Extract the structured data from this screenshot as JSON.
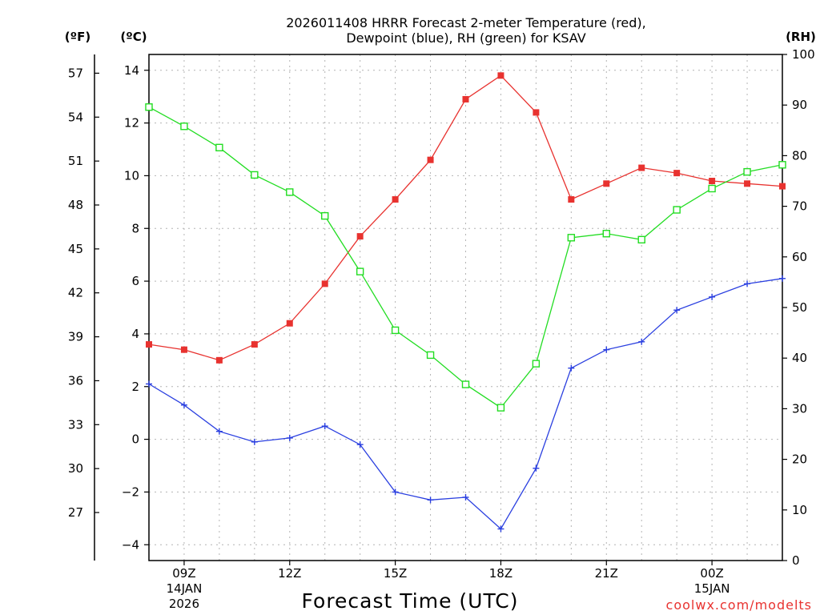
{
  "chart_data": {
    "type": "line",
    "title_line1": "2026011408 HRRR Forecast 2-meter Temperature (red),",
    "title_line2": "Dewpoint (blue), RH (green) for KSAV",
    "xlabel": "Forecast Time (UTC)",
    "credit": "coolwx.com/modelts",
    "units": {
      "fahrenheit": "(ºF)",
      "celsius": "(ºC)",
      "rh": "(RH)"
    },
    "x_hours": [
      8,
      9,
      10,
      11,
      12,
      13,
      14,
      15,
      16,
      17,
      18,
      19,
      20,
      21,
      22,
      23,
      24,
      25,
      26
    ],
    "xlim": [
      8,
      26
    ],
    "celsius_ylim": [
      -4.6,
      14.6
    ],
    "rh_ylim": [
      0,
      100
    ],
    "celsius_ticks": [
      14,
      12,
      10,
      8,
      6,
      4,
      2,
      0,
      -2,
      -4
    ],
    "celsius_tick_labels": [
      "14",
      "12",
      "10",
      "8",
      "6",
      "4",
      "2",
      "0",
      "−2",
      "−4"
    ],
    "fahrenheit_ticks": [
      57,
      54,
      51,
      48,
      45,
      42,
      39,
      36,
      33,
      30,
      27
    ],
    "fahrenheit_tick_labels": [
      "57",
      "54",
      "51",
      "48",
      "45",
      "42",
      "39",
      "36",
      "33",
      "30",
      "27"
    ],
    "rh_ticks": [
      100,
      90,
      80,
      70,
      60,
      50,
      40,
      30,
      20,
      10,
      0
    ],
    "rh_tick_labels": [
      "100",
      "90",
      "80",
      "70",
      "60",
      "50",
      "40",
      "30",
      "20",
      "10",
      "0"
    ],
    "x_ticks": [
      {
        "hour": 9,
        "line1": "09Z",
        "line2": "14JAN",
        "line3": "2026"
      },
      {
        "hour": 12,
        "line1": "12Z",
        "line2": "",
        "line3": ""
      },
      {
        "hour": 15,
        "line1": "15Z",
        "line2": "",
        "line3": ""
      },
      {
        "hour": 18,
        "line1": "18Z",
        "line2": "",
        "line3": ""
      },
      {
        "hour": 21,
        "line1": "21Z",
        "line2": "",
        "line3": ""
      },
      {
        "hour": 24,
        "line1": "00Z",
        "line2": "15JAN",
        "line3": ""
      }
    ],
    "series": [
      {
        "name": "Temperature",
        "axis": "celsius",
        "color": "#e8322f",
        "marker": "filled-square",
        "values": [
          3.6,
          3.4,
          3.0,
          3.6,
          4.4,
          5.9,
          7.7,
          9.1,
          10.6,
          12.9,
          13.8,
          12.4,
          9.1,
          9.7,
          10.3,
          10.1,
          9.8,
          9.7,
          9.6
        ]
      },
      {
        "name": "Dewpoint",
        "axis": "celsius",
        "color": "#2a3fe0",
        "marker": "plus",
        "values": [
          2.1,
          1.3,
          0.3,
          -0.1,
          0.05,
          0.5,
          -0.2,
          -2.0,
          -2.3,
          -2.2,
          -3.4,
          -1.1,
          2.7,
          3.4,
          3.7,
          4.9,
          5.4,
          5.9,
          6.1
        ]
      },
      {
        "name": "RH",
        "axis": "rh",
        "color": "#22dd22",
        "marker": "open-square",
        "values": [
          89.6,
          85.8,
          81.6,
          76.2,
          72.8,
          68.1,
          57.1,
          45.5,
          40.6,
          34.8,
          30.2,
          38.9,
          63.8,
          64.6,
          63.4,
          69.3,
          73.5,
          76.8,
          78.2
        ]
      }
    ]
  }
}
